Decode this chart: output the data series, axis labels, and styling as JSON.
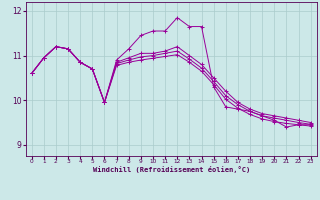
{
  "xlabel": "Windchill (Refroidissement éolien,°C)",
  "background_color": "#cce8e8",
  "line_color": "#990099",
  "xlim": [
    -0.5,
    23.5
  ],
  "ylim": [
    8.75,
    12.2
  ],
  "yticks": [
    9,
    10,
    11,
    12
  ],
  "xticks": [
    0,
    1,
    2,
    3,
    4,
    5,
    6,
    7,
    8,
    9,
    10,
    11,
    12,
    13,
    14,
    15,
    16,
    17,
    18,
    19,
    20,
    21,
    22,
    23
  ],
  "series": [
    [
      10.6,
      10.95,
      11.2,
      11.15,
      10.85,
      10.7,
      9.95,
      10.9,
      11.15,
      11.45,
      11.55,
      11.55,
      11.85,
      11.65,
      11.65,
      10.3,
      9.85,
      9.8,
      9.75,
      9.65,
      9.55,
      9.4,
      9.45,
      9.45
    ],
    [
      10.6,
      10.95,
      11.2,
      11.15,
      10.85,
      10.7,
      9.95,
      10.85,
      10.95,
      11.05,
      11.05,
      11.1,
      11.2,
      11.0,
      10.8,
      10.5,
      10.2,
      9.95,
      9.8,
      9.7,
      9.65,
      9.6,
      9.55,
      9.5
    ],
    [
      10.6,
      10.95,
      11.2,
      11.15,
      10.85,
      10.7,
      9.95,
      10.82,
      10.9,
      10.97,
      11.0,
      11.05,
      11.1,
      10.92,
      10.72,
      10.42,
      10.1,
      9.9,
      9.75,
      9.65,
      9.6,
      9.55,
      9.5,
      9.46
    ],
    [
      10.6,
      10.95,
      11.2,
      11.15,
      10.85,
      10.7,
      9.95,
      10.78,
      10.85,
      10.9,
      10.94,
      10.98,
      11.02,
      10.85,
      10.65,
      10.35,
      10.02,
      9.82,
      9.68,
      9.58,
      9.52,
      9.48,
      9.45,
      9.42
    ]
  ]
}
